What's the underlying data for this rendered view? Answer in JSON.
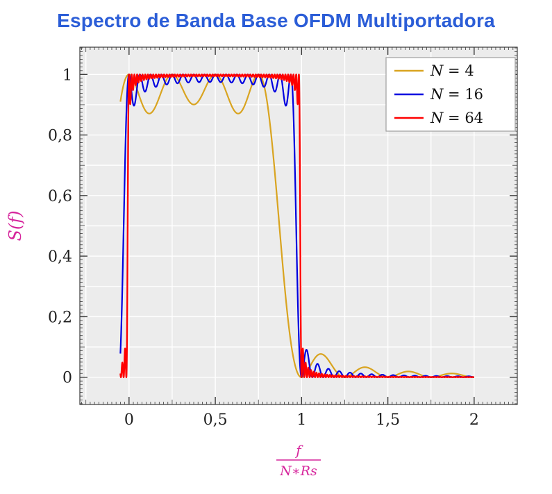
{
  "colors": {
    "title": "#2b5dd7",
    "axis_label": "#d6259c",
    "plot_background": "#ececec",
    "grid": "#ffffff",
    "frame": "#3a3a3a",
    "tick": "#3a3a3a",
    "tick_label": "#1f1f1f",
    "legend_border": "#9e9e9e",
    "legend_background": "#ffffff"
  },
  "chart_data": {
    "type": "line",
    "title": "Espectro de Banda Base OFDM Multiportadora",
    "ylabel": "S(f)",
    "xlabel": "f/(N∗Rs)",
    "xlabel_fraction": {
      "numerator": "f",
      "denominator": "N∗Rs"
    },
    "xlim": [
      -0.285,
      2.25
    ],
    "ylim": [
      -0.09,
      1.09
    ],
    "x_ticks": [
      {
        "v": 0,
        "label": "0"
      },
      {
        "v": 0.5,
        "label": "0,5"
      },
      {
        "v": 1,
        "label": "1"
      },
      {
        "v": 1.5,
        "label": "1,5"
      },
      {
        "v": 2,
        "label": "2"
      }
    ],
    "y_ticks": [
      {
        "v": 0,
        "label": "0"
      },
      {
        "v": 0.2,
        "label": "0,2"
      },
      {
        "v": 0.4,
        "label": "0,4"
      },
      {
        "v": 0.6,
        "label": "0,6"
      },
      {
        "v": 0.8,
        "label": "0,8"
      },
      {
        "v": 1,
        "label": "1"
      }
    ],
    "x_minor_step": 0.025,
    "y_minor_step": 0.0125,
    "grid_x_step": 0.25,
    "grid_y_step": 0.1,
    "grid_on": true,
    "legend": {
      "position": "top-right"
    },
    "series": [
      {
        "label": "N = 4",
        "N": 4,
        "color": "#D9A420",
        "width": 2.2,
        "x_range": [
          -0.05,
          2.0
        ],
        "samples": 1400,
        "formula": "S(x) = sum_{k=0..N-1} sinc^2(N*x - k), sinc(t)=sin(pi t)/(pi t)",
        "band": [
          0,
          1
        ],
        "peak": 1.0,
        "inband_ripple_min": 0.87,
        "first_sidelobe": 0.07
      },
      {
        "label": "N = 16",
        "N": 16,
        "color": "#0000E0",
        "width": 2.2,
        "x_range": [
          -0.05,
          2.0
        ],
        "samples": 2200,
        "formula": "S(x) = sum_{k=0..N-1} sinc^2(N*x - k), sinc(t)=sin(pi t)/(pi t)",
        "band": [
          0,
          1
        ],
        "peak": 1.0,
        "inband_ripple_min": 0.93,
        "first_sidelobe": 0.08
      },
      {
        "label": "N = 64",
        "N": 64,
        "color": "#FF0000",
        "width": 2.4,
        "x_range": [
          -0.05,
          2.0
        ],
        "samples": 3400,
        "formula": "S(x) = sum_{k=0..N-1} sinc^2(N*x - k), sinc(t)=sin(pi t)/(pi t)",
        "band": [
          0,
          1
        ],
        "peak": 1.0,
        "inband_ripple_min": 0.95,
        "first_sidelobe": 0.075
      }
    ]
  }
}
